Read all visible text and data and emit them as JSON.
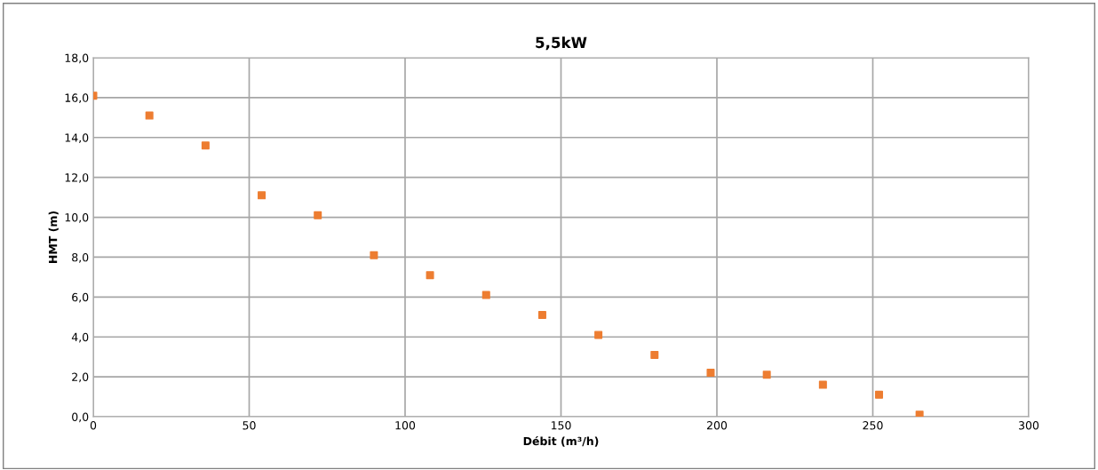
{
  "chart_data": {
    "type": "scatter",
    "title": "5,5kW",
    "xlabel": "Débit (m³/h)",
    "ylabel": "HMT (m)",
    "x": [
      0,
      18,
      36,
      54,
      72,
      90,
      108,
      126,
      144,
      162,
      180,
      198,
      216,
      234,
      252,
      265
    ],
    "series": [
      {
        "color": "#ed7d31",
        "values": [
          16.1,
          15.1,
          13.6,
          11.1,
          10.1,
          8.1,
          7.1,
          6.1,
          5.1,
          4.1,
          3.1,
          2.2,
          2.1,
          1.6,
          1.1,
          0.1
        ]
      }
    ],
    "xlim": [
      0,
      300
    ],
    "xticks": [
      0,
      50,
      100,
      150,
      200,
      250,
      300
    ],
    "ylim": [
      0,
      18
    ],
    "yticks": [
      {
        "value": 0,
        "label": "0,0"
      },
      {
        "value": 2,
        "label": "2,0"
      },
      {
        "value": 4,
        "label": "4,0"
      },
      {
        "value": 6,
        "label": "6,0"
      },
      {
        "value": 8,
        "label": "8,0"
      },
      {
        "value": 10,
        "label": "10,0"
      },
      {
        "value": 12,
        "label": "12,0"
      },
      {
        "value": 14,
        "label": "14,0"
      },
      {
        "value": 16,
        "label": "16,0"
      },
      {
        "value": 18,
        "label": "18,0"
      }
    ],
    "grid": true,
    "marker": "square"
  }
}
